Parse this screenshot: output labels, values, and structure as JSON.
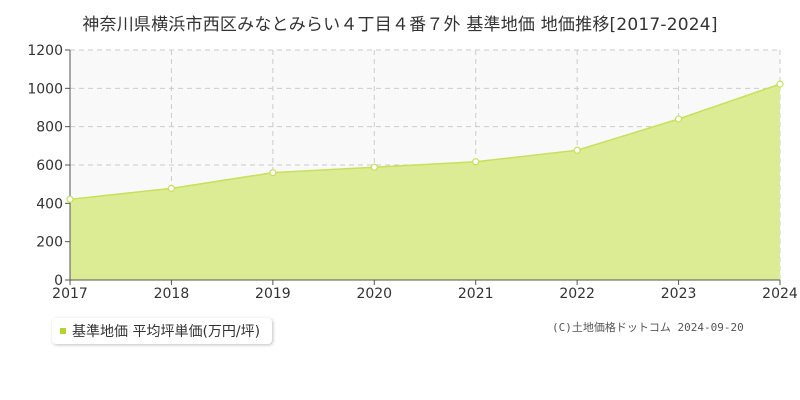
{
  "colors": {
    "area_fill": "#dcec94",
    "line": "#c8e05a",
    "marker_fill": "#ffffff",
    "grid": "#cccccc",
    "plot_bg": "#f9f9f9",
    "legend_swatch": "#b3d62b",
    "text": "#333333"
  },
  "chart_data": {
    "type": "area",
    "title": "神奈川県横浜市西区みなとみらい４丁目４番７外 基準地価 地価推移[2017-2024]",
    "x": [
      "2017",
      "2018",
      "2019",
      "2020",
      "2021",
      "2022",
      "2023",
      "2024"
    ],
    "series": [
      {
        "name": "基準地価 平均坪単価(万円/坪)",
        "values": [
          421,
          478,
          560,
          588,
          617,
          677,
          840,
          1022
        ]
      }
    ],
    "ylim": [
      0,
      1200
    ],
    "yticks": [
      0,
      200,
      400,
      600,
      800,
      1000,
      1200
    ],
    "grid": true,
    "legend_position": "bottom-left"
  },
  "copyright": "(C)土地価格ドットコム 2024-09-20"
}
